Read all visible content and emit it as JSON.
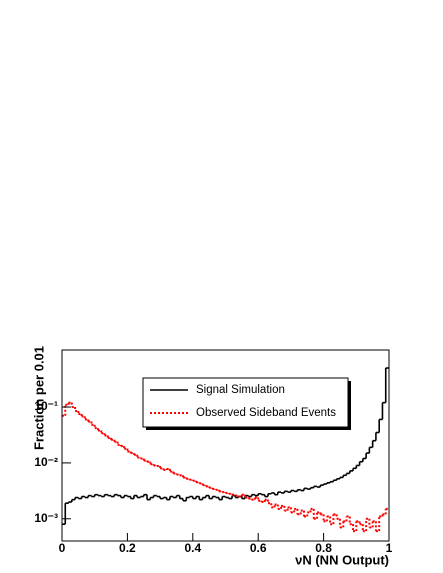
{
  "chart_data": {
    "type": "histogram",
    "xlabel": "νN  (NN Output)",
    "ylabel": "Fraction per 0.01",
    "bins": [
      0,
      0.01,
      0.02,
      0.03,
      0.04,
      0.05,
      0.06,
      0.07,
      0.08,
      0.09,
      0.1,
      0.11,
      0.12,
      0.13,
      0.14,
      0.15,
      0.16,
      0.17,
      0.18,
      0.19,
      0.2,
      0.21,
      0.22,
      0.23,
      0.24,
      0.25,
      0.26,
      0.27,
      0.28,
      0.29,
      0.3,
      0.31,
      0.32,
      0.33,
      0.34,
      0.35,
      0.36,
      0.37,
      0.38,
      0.39,
      0.4,
      0.41,
      0.42,
      0.43,
      0.44,
      0.45,
      0.46,
      0.47,
      0.48,
      0.49,
      0.5,
      0.51,
      0.52,
      0.53,
      0.54,
      0.55,
      0.56,
      0.57,
      0.58,
      0.59,
      0.6,
      0.61,
      0.62,
      0.63,
      0.64,
      0.65,
      0.66,
      0.67,
      0.68,
      0.69,
      0.7,
      0.71,
      0.72,
      0.73,
      0.74,
      0.75,
      0.76,
      0.77,
      0.78,
      0.79,
      0.8,
      0.81,
      0.82,
      0.83,
      0.84,
      0.85,
      0.86,
      0.87,
      0.88,
      0.89,
      0.9,
      0.91,
      0.92,
      0.93,
      0.94,
      0.95,
      0.96,
      0.97,
      0.98,
      0.99,
      1
    ],
    "series": [
      {
        "name": "Signal Simulation",
        "color": "#000000",
        "dash": false,
        "values": [
          0.0008,
          0.0019,
          0.002,
          0.0022,
          0.0024,
          0.0023,
          0.0025,
          0.0024,
          0.0026,
          0.0025,
          0.0027,
          0.0026,
          0.0025,
          0.0027,
          0.0026,
          0.0025,
          0.0027,
          0.0026,
          0.0024,
          0.0026,
          0.0025,
          0.0023,
          0.0026,
          0.0024,
          0.0025,
          0.0027,
          0.0022,
          0.0024,
          0.0026,
          0.0025,
          0.0023,
          0.0024,
          0.0022,
          0.0025,
          0.0024,
          0.0026,
          0.0023,
          0.0021,
          0.0024,
          0.0025,
          0.0023,
          0.0025,
          0.0022,
          0.0024,
          0.0026,
          0.0023,
          0.0025,
          0.0024,
          0.0022,
          0.0025,
          0.0024,
          0.0023,
          0.0026,
          0.0024,
          0.0025,
          0.0023,
          0.0026,
          0.0025,
          0.0027,
          0.0026,
          0.0028,
          0.0027,
          0.0025,
          0.0028,
          0.0029,
          0.0027,
          0.003,
          0.0029,
          0.0031,
          0.003,
          0.0032,
          0.0031,
          0.0033,
          0.0032,
          0.0035,
          0.0034,
          0.0036,
          0.0038,
          0.0037,
          0.004,
          0.0042,
          0.0044,
          0.0046,
          0.0049,
          0.0052,
          0.0055,
          0.006,
          0.0065,
          0.0072,
          0.008,
          0.009,
          0.0105,
          0.012,
          0.015,
          0.019,
          0.025,
          0.035,
          0.06,
          0.12,
          0.5
        ]
      },
      {
        "name": "Observed Sideband Events",
        "color": "#ff0000",
        "dash": true,
        "values": [
          0.07,
          0.11,
          0.12,
          0.1,
          0.085,
          0.075,
          0.068,
          0.06,
          0.055,
          0.048,
          0.042,
          0.038,
          0.034,
          0.031,
          0.028,
          0.026,
          0.024,
          0.021,
          0.02,
          0.018,
          0.016,
          0.015,
          0.014,
          0.0125,
          0.012,
          0.011,
          0.0105,
          0.0095,
          0.009,
          0.0088,
          0.008,
          0.0075,
          0.0078,
          0.007,
          0.0065,
          0.0062,
          0.006,
          0.0055,
          0.0052,
          0.005,
          0.0048,
          0.0045,
          0.0043,
          0.004,
          0.0038,
          0.0036,
          0.0034,
          0.0033,
          0.0031,
          0.003,
          0.0029,
          0.0028,
          0.0027,
          0.0026,
          0.0025,
          0.0027,
          0.0024,
          0.0023,
          0.0022,
          0.0024,
          0.0021,
          0.002,
          0.0022,
          0.0019,
          0.0016,
          0.0018,
          0.0015,
          0.0017,
          0.0014,
          0.0016,
          0.0013,
          0.0015,
          0.0012,
          0.0014,
          0.0011,
          0.0013,
          0.0015,
          0.001,
          0.0013,
          0.0012,
          0.0009,
          0.0011,
          0.0008,
          0.0012,
          0.001,
          0.0007,
          0.0009,
          0.0011,
          0.0008,
          0.0006,
          0.0009,
          0.0008,
          0.0006,
          0.001,
          0.0007,
          0.0009,
          0.0006,
          0.0011,
          0.0012,
          0.0015
        ]
      }
    ],
    "xlim": [
      0,
      1
    ],
    "xticks": [
      0,
      0.2,
      0.4,
      0.6,
      0.8,
      1
    ],
    "ylim": [
      0.0004,
      1.05
    ],
    "yticks": [
      {
        "value": 0.001,
        "label": "10⁻³"
      },
      {
        "value": 0.01,
        "label": "10⁻²"
      },
      {
        "value": 0.1,
        "label": "10⁻¹"
      }
    ],
    "log_y": true,
    "grid": false
  }
}
